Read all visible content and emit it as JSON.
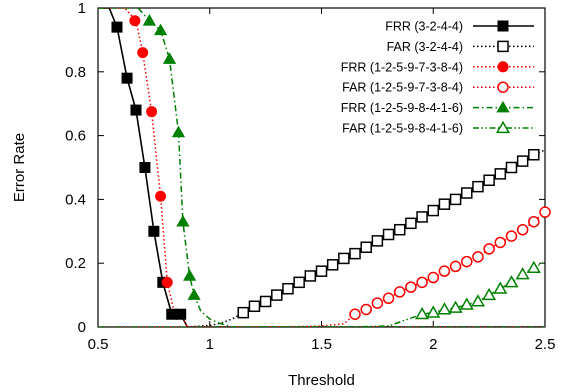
{
  "chart_data": {
    "type": "line",
    "xlabel": "Threshold",
    "ylabel": "Error Rate",
    "xlim": [
      0.5,
      2.5
    ],
    "ylim": [
      0,
      1
    ],
    "xticks": [
      0.5,
      1,
      1.5,
      2,
      2.5
    ],
    "xtick_labels": [
      "0.5",
      "1",
      "1.5",
      "2",
      "2.5"
    ],
    "yticks": [
      0,
      0.2,
      0.4,
      0.6,
      0.8,
      1
    ],
    "ytick_labels": [
      "0",
      "0.2",
      "0.4",
      "0.6",
      "0.8",
      "1"
    ],
    "grid": false,
    "legend_position": "top-right",
    "series": [
      {
        "name": "FRR (3-2-4-4)",
        "color": "#000000",
        "line": "solid",
        "marker": "square-filled",
        "points": [
          [
            0.5,
            1.0
          ],
          [
            0.55,
            1.0
          ],
          [
            0.585,
            0.94
          ],
          [
            0.63,
            0.78
          ],
          [
            0.67,
            0.68
          ],
          [
            0.71,
            0.5
          ],
          [
            0.75,
            0.3
          ],
          [
            0.79,
            0.14
          ],
          [
            0.83,
            0.04
          ],
          [
            0.87,
            0.04
          ],
          [
            0.9,
            0.0
          ],
          [
            1.0,
            0.0
          ],
          [
            1.2,
            0.0
          ],
          [
            1.5,
            0.0
          ],
          [
            2.0,
            0.0
          ],
          [
            2.5,
            0.0
          ]
        ],
        "marker_points": [
          [
            0.585,
            0.94
          ],
          [
            0.63,
            0.78
          ],
          [
            0.67,
            0.68
          ],
          [
            0.71,
            0.5
          ],
          [
            0.75,
            0.3
          ],
          [
            0.79,
            0.14
          ],
          [
            0.83,
            0.04
          ],
          [
            0.87,
            0.04
          ]
        ]
      },
      {
        "name": "FAR (3-2-4-4)",
        "color": "#000000",
        "line": "dotted",
        "marker": "square-open",
        "points": [
          [
            0.5,
            0.0
          ],
          [
            0.9,
            0.0
          ],
          [
            1.0,
            0.005
          ],
          [
            1.05,
            0.012
          ],
          [
            1.1,
            0.025
          ],
          [
            1.15,
            0.045
          ],
          [
            1.2,
            0.065
          ],
          [
            1.25,
            0.08
          ],
          [
            1.3,
            0.1
          ],
          [
            1.35,
            0.12
          ],
          [
            1.4,
            0.14
          ],
          [
            1.45,
            0.16
          ],
          [
            1.5,
            0.175
          ],
          [
            1.55,
            0.195
          ],
          [
            1.6,
            0.215
          ],
          [
            1.65,
            0.23
          ],
          [
            1.7,
            0.25
          ],
          [
            1.75,
            0.27
          ],
          [
            1.8,
            0.29
          ],
          [
            1.85,
            0.305
          ],
          [
            1.9,
            0.325
          ],
          [
            1.95,
            0.345
          ],
          [
            2.0,
            0.365
          ],
          [
            2.05,
            0.385
          ],
          [
            2.1,
            0.4
          ],
          [
            2.15,
            0.42
          ],
          [
            2.2,
            0.44
          ],
          [
            2.25,
            0.46
          ],
          [
            2.3,
            0.48
          ],
          [
            2.35,
            0.5
          ],
          [
            2.4,
            0.52
          ],
          [
            2.45,
            0.54
          ],
          [
            2.5,
            0.555
          ]
        ],
        "marker_points": [
          [
            1.15,
            0.045
          ],
          [
            1.2,
            0.065
          ],
          [
            1.25,
            0.08
          ],
          [
            1.3,
            0.1
          ],
          [
            1.35,
            0.12
          ],
          [
            1.4,
            0.14
          ],
          [
            1.45,
            0.16
          ],
          [
            1.5,
            0.175
          ],
          [
            1.55,
            0.195
          ],
          [
            1.6,
            0.215
          ],
          [
            1.65,
            0.23
          ],
          [
            1.7,
            0.25
          ],
          [
            1.75,
            0.27
          ],
          [
            1.8,
            0.29
          ],
          [
            1.85,
            0.305
          ],
          [
            1.9,
            0.325
          ],
          [
            1.95,
            0.345
          ],
          [
            2.0,
            0.365
          ],
          [
            2.05,
            0.385
          ],
          [
            2.1,
            0.4
          ],
          [
            2.15,
            0.42
          ],
          [
            2.2,
            0.44
          ],
          [
            2.25,
            0.46
          ],
          [
            2.3,
            0.48
          ],
          [
            2.35,
            0.5
          ],
          [
            2.4,
            0.52
          ],
          [
            2.45,
            0.54
          ]
        ]
      },
      {
        "name": "FRR (1-2-5-9-7-3-8-4)",
        "color": "#ff0000",
        "line": "dotted",
        "marker": "circle-filled",
        "points": [
          [
            0.5,
            1.0
          ],
          [
            0.62,
            1.0
          ],
          [
            0.67,
            0.96
          ],
          [
            0.7,
            0.86
          ],
          [
            0.74,
            0.675
          ],
          [
            0.78,
            0.41
          ],
          [
            0.81,
            0.14
          ],
          [
            0.84,
            0.05
          ],
          [
            0.87,
            0.04
          ],
          [
            0.9,
            0.0
          ],
          [
            1.0,
            0.0
          ],
          [
            1.5,
            0.0
          ],
          [
            2.0,
            0.0
          ],
          [
            2.5,
            0.0
          ]
        ],
        "marker_points": [
          [
            0.665,
            0.96
          ],
          [
            0.7,
            0.86
          ],
          [
            0.74,
            0.675
          ],
          [
            0.78,
            0.41
          ],
          [
            0.81,
            0.14
          ]
        ]
      },
      {
        "name": "FAR (1-2-5-9-7-3-8-4)",
        "color": "#ff0000",
        "line": "dotted",
        "marker": "circle-open",
        "points": [
          [
            0.5,
            0.0
          ],
          [
            1.3,
            0.0
          ],
          [
            1.5,
            0.003
          ],
          [
            1.6,
            0.01
          ],
          [
            1.65,
            0.04
          ],
          [
            1.7,
            0.055
          ],
          [
            1.75,
            0.075
          ],
          [
            1.8,
            0.09
          ],
          [
            1.85,
            0.11
          ],
          [
            1.9,
            0.125
          ],
          [
            1.95,
            0.14
          ],
          [
            2.0,
            0.155
          ],
          [
            2.05,
            0.175
          ],
          [
            2.1,
            0.19
          ],
          [
            2.15,
            0.205
          ],
          [
            2.2,
            0.22
          ],
          [
            2.25,
            0.245
          ],
          [
            2.3,
            0.265
          ],
          [
            2.35,
            0.285
          ],
          [
            2.4,
            0.305
          ],
          [
            2.45,
            0.33
          ],
          [
            2.5,
            0.36
          ],
          [
            2.55,
            0.37
          ]
        ],
        "marker_points": [
          [
            1.65,
            0.04
          ],
          [
            1.7,
            0.055
          ],
          [
            1.75,
            0.075
          ],
          [
            1.8,
            0.09
          ],
          [
            1.85,
            0.11
          ],
          [
            1.9,
            0.125
          ],
          [
            1.95,
            0.14
          ],
          [
            2.0,
            0.155
          ],
          [
            2.05,
            0.175
          ],
          [
            2.1,
            0.19
          ],
          [
            2.15,
            0.205
          ],
          [
            2.2,
            0.22
          ],
          [
            2.25,
            0.245
          ],
          [
            2.3,
            0.265
          ],
          [
            2.35,
            0.285
          ],
          [
            2.4,
            0.305
          ],
          [
            2.45,
            0.33
          ],
          [
            2.5,
            0.36
          ]
        ]
      },
      {
        "name": "FRR (1-2-5-9-8-4-1-6)",
        "color": "#008000",
        "line": "dashdot",
        "marker": "triangle-filled",
        "points": [
          [
            0.5,
            1.0
          ],
          [
            0.68,
            1.0
          ],
          [
            0.73,
            0.96
          ],
          [
            0.78,
            0.93
          ],
          [
            0.82,
            0.84
          ],
          [
            0.86,
            0.61
          ],
          [
            0.88,
            0.33
          ],
          [
            0.91,
            0.16
          ],
          [
            0.93,
            0.1
          ],
          [
            0.96,
            0.05
          ],
          [
            1.0,
            0.025
          ],
          [
            1.05,
            0.01
          ],
          [
            1.1,
            0.0
          ],
          [
            1.5,
            0.0
          ],
          [
            2.0,
            0.0
          ],
          [
            2.5,
            0.0
          ]
        ],
        "marker_points": [
          [
            0.73,
            0.96
          ],
          [
            0.78,
            0.93
          ],
          [
            0.82,
            0.84
          ],
          [
            0.86,
            0.61
          ],
          [
            0.88,
            0.33
          ],
          [
            0.91,
            0.16
          ],
          [
            0.93,
            0.1
          ]
        ]
      },
      {
        "name": "FAR (1-2-5-9-8-4-1-6)",
        "color": "#008000",
        "line": "dashdotdot",
        "marker": "triangle-open",
        "points": [
          [
            0.5,
            0.0
          ],
          [
            1.6,
            0.0
          ],
          [
            1.8,
            0.003
          ],
          [
            1.95,
            0.04
          ],
          [
            2.0,
            0.045
          ],
          [
            2.05,
            0.055
          ],
          [
            2.1,
            0.06
          ],
          [
            2.15,
            0.07
          ],
          [
            2.2,
            0.08
          ],
          [
            2.25,
            0.1
          ],
          [
            2.3,
            0.12
          ],
          [
            2.35,
            0.14
          ],
          [
            2.4,
            0.165
          ],
          [
            2.45,
            0.185
          ],
          [
            2.5,
            0.205
          ],
          [
            2.55,
            0.21
          ]
        ],
        "marker_points": [
          [
            1.95,
            0.04
          ],
          [
            2.0,
            0.045
          ],
          [
            2.05,
            0.055
          ],
          [
            2.1,
            0.06
          ],
          [
            2.15,
            0.07
          ],
          [
            2.2,
            0.08
          ],
          [
            2.25,
            0.1
          ],
          [
            2.3,
            0.12
          ],
          [
            2.35,
            0.14
          ],
          [
            2.4,
            0.165
          ],
          [
            2.45,
            0.185
          ]
        ]
      }
    ]
  }
}
